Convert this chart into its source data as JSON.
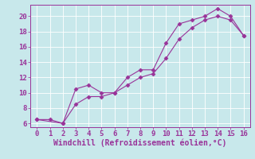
{
  "line1_x": [
    0,
    1,
    2,
    3,
    4,
    5,
    6,
    7,
    8,
    9,
    10,
    11,
    12,
    13,
    14,
    15,
    16
  ],
  "line1_y": [
    6.5,
    6.5,
    6.0,
    10.5,
    11.0,
    10.0,
    10.0,
    12.0,
    13.0,
    13.0,
    16.5,
    19.0,
    19.5,
    20.0,
    21.0,
    20.0,
    17.5
  ],
  "line2_x": [
    0,
    2,
    3,
    4,
    5,
    6,
    7,
    8,
    9,
    10,
    11,
    12,
    13,
    14,
    15,
    16
  ],
  "line2_y": [
    6.5,
    6.0,
    8.5,
    9.5,
    9.5,
    10.0,
    11.0,
    12.0,
    12.5,
    14.5,
    17.0,
    18.5,
    19.5,
    20.0,
    19.5,
    17.5
  ],
  "line_color": "#993399",
  "marker": "D",
  "marker_size": 2.5,
  "bg_color": "#c8e8eb",
  "grid_color": "#b0d8db",
  "xlabel": "Windchill (Refroidissement éolien,°C)",
  "xlabel_color": "#993399",
  "xlim": [
    -0.5,
    16.5
  ],
  "ylim": [
    5.5,
    21.5
  ],
  "xticks": [
    0,
    1,
    2,
    3,
    4,
    5,
    6,
    7,
    8,
    9,
    10,
    11,
    12,
    13,
    14,
    15,
    16
  ],
  "yticks": [
    6,
    8,
    10,
    12,
    14,
    16,
    18,
    20
  ],
  "tick_color": "#993399",
  "tick_fontsize": 6.5,
  "xlabel_fontsize": 7
}
